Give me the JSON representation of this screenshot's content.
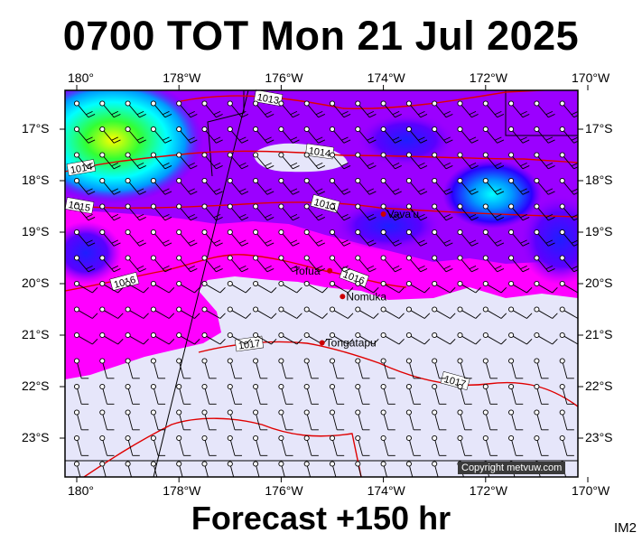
{
  "title": "0700 TOT Mon 21 Jul 2025",
  "footer": "Forecast +150 hr",
  "image_tag": "IM2",
  "copyright": "Copyright metvuw.com",
  "lon_labels": [
    "180°",
    "178°W",
    "176°W",
    "174°W",
    "172°W",
    "170°W"
  ],
  "lat_labels": [
    "17°S",
    "18°S",
    "19°S",
    "20°S",
    "21°S",
    "22°S",
    "23°S"
  ],
  "isobar_labels": [
    "1013",
    "1014",
    "1014",
    "1015",
    "1015",
    "1016",
    "1016",
    "1017",
    "1017"
  ],
  "places": [
    {
      "name": "Vava'u",
      "lon": -174.0,
      "lat": -18.65
    },
    {
      "name": "Tofua",
      "lon": -175.05,
      "lat": -19.75
    },
    {
      "name": "Nomuka",
      "lon": -174.8,
      "lat": -20.25
    },
    {
      "name": "Tongatapu",
      "lon": -175.2,
      "lat": -21.15
    }
  ],
  "colors": {
    "isobar": "#e00000",
    "land_place": "#cc0000",
    "calm": "#e6e6fa",
    "light": "#ff00ff",
    "moderate": "#9b00ff",
    "strong": "#2a00ff"
  }
}
